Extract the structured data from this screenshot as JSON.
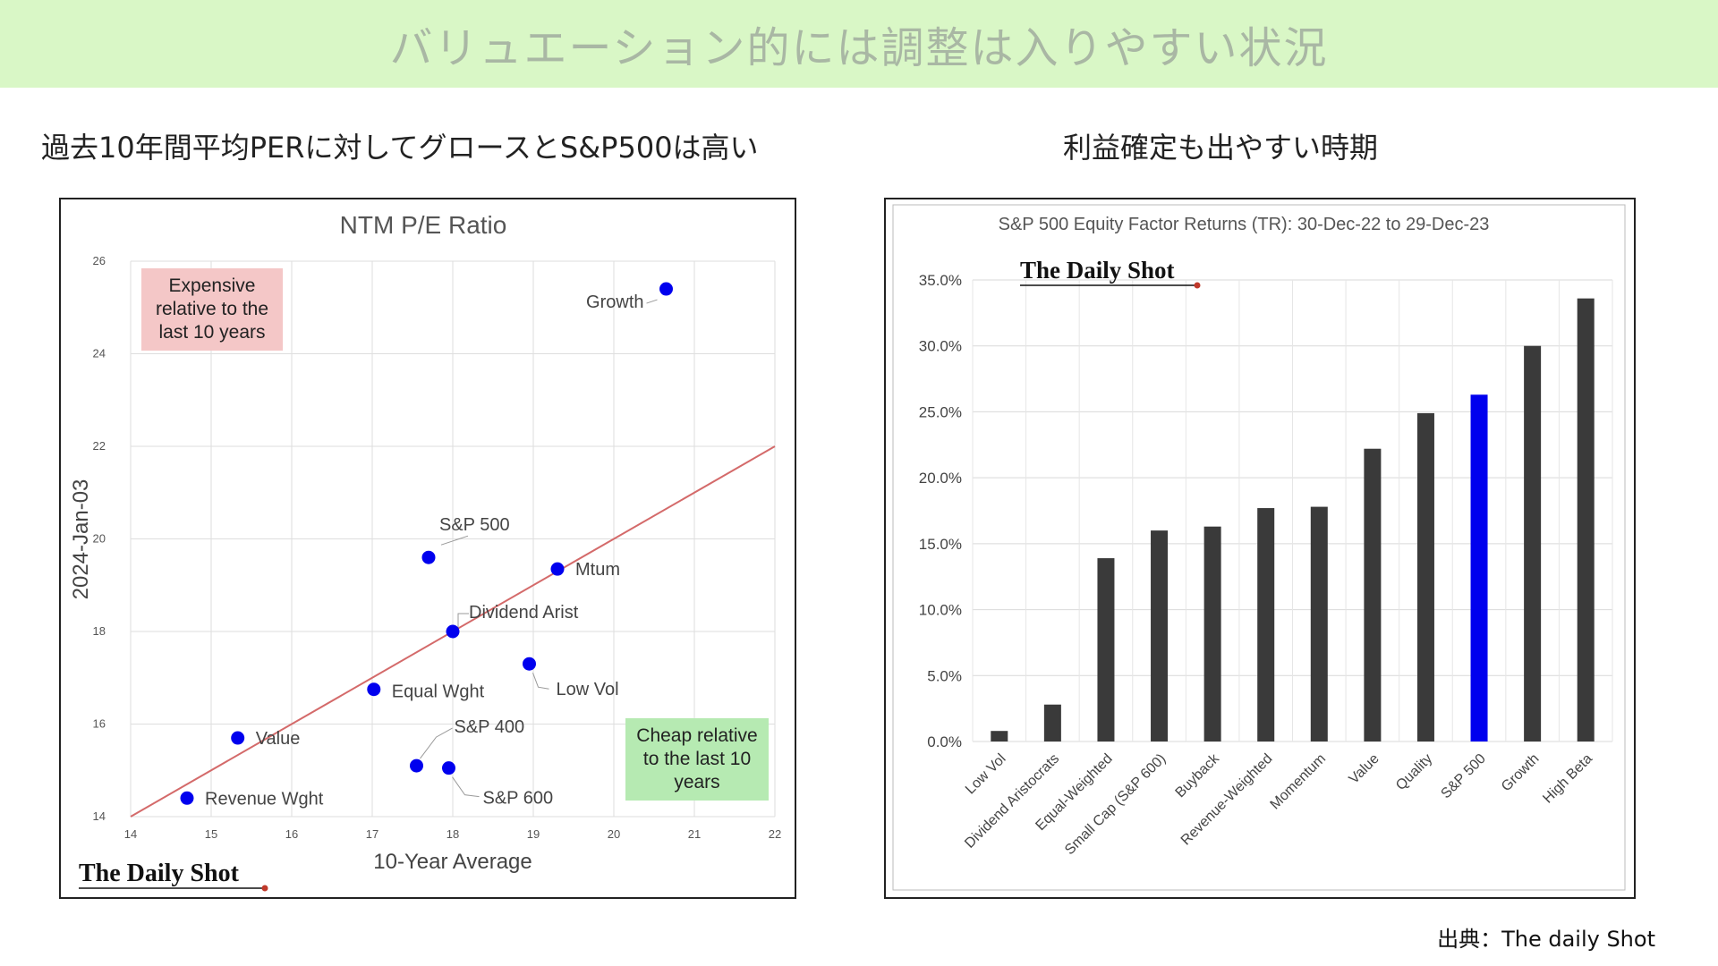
{
  "banner": {
    "title": "バリュエーション的には調整は入りやすい状況",
    "color": "#d9f7c6"
  },
  "left": {
    "subtitle": "過去10年間平均PERに対してグロースとS&P500は高い"
  },
  "right": {
    "subtitle": "利益確定も出やすい時期"
  },
  "source": "出典：The daily Shot",
  "watermark": "The Daily Shot",
  "chart_data": [
    {
      "type": "scatter",
      "title": "NTM P/E Ratio",
      "xlabel": "10-Year Average",
      "ylabel": "2024-Jan-03",
      "xlim": [
        14,
        22
      ],
      "ylim": [
        14,
        26
      ],
      "xticks": [
        "14",
        "15",
        "16",
        "17",
        "18",
        "19",
        "20",
        "21",
        "22"
      ],
      "yticks": [
        "14",
        "16",
        "18",
        "20",
        "22",
        "24",
        "26"
      ],
      "grid": true,
      "reference_line": {
        "from": [
          14,
          14
        ],
        "to": [
          22,
          22
        ],
        "color": "#d46a6a"
      },
      "point_color": "#0000ee",
      "points": [
        {
          "label": "Growth",
          "x": 20.65,
          "y": 25.4
        },
        {
          "label": "S&P 500",
          "x": 17.7,
          "y": 19.6
        },
        {
          "label": "Mtum",
          "x": 19.3,
          "y": 19.35
        },
        {
          "label": "Dividend Arist",
          "x": 18.0,
          "y": 18.0
        },
        {
          "label": "Low Vol",
          "x": 18.95,
          "y": 17.3
        },
        {
          "label": "Equal Wght",
          "x": 17.02,
          "y": 16.75
        },
        {
          "label": "Value",
          "x": 15.33,
          "y": 15.7
        },
        {
          "label": "S&P 400",
          "x": 17.55,
          "y": 15.1
        },
        {
          "label": "S&P 600",
          "x": 17.95,
          "y": 15.05
        },
        {
          "label": "Revenue Wght",
          "x": 14.7,
          "y": 14.4
        }
      ],
      "annotations": [
        {
          "text": [
            "Expensive",
            "relative to the",
            "last 10 years"
          ],
          "color": "#f4c7c7"
        },
        {
          "text": [
            "Cheap relative",
            "to the last 10",
            "years"
          ],
          "color": "#b6eab2"
        }
      ]
    },
    {
      "type": "bar",
      "title": "S&P 500 Equity Factor Returns (TR): 30-Dec-22 to 29-Dec-23",
      "categories": [
        "Low Vol",
        "Dividend Aristocrats",
        "Equal-Weighted",
        "Small Cap (S&P 600)",
        "Buyback",
        "Revenue-Weighted",
        "Momentum",
        "Value",
        "Quality",
        "S&P 500",
        "Growth",
        "High Beta"
      ],
      "values": [
        0.8,
        2.8,
        13.9,
        16.0,
        16.3,
        17.7,
        17.8,
        22.2,
        24.9,
        26.3,
        30.0,
        33.6
      ],
      "ylim": [
        0,
        35
      ],
      "yticks": [
        "0.0%",
        "5.0%",
        "10.0%",
        "15.0%",
        "20.0%",
        "25.0%",
        "30.0%",
        "35.0%"
      ],
      "bar_color": "#3a3a3a",
      "highlight": {
        "category": "S&P 500",
        "color": "#0000ee"
      },
      "grid": true
    }
  ]
}
